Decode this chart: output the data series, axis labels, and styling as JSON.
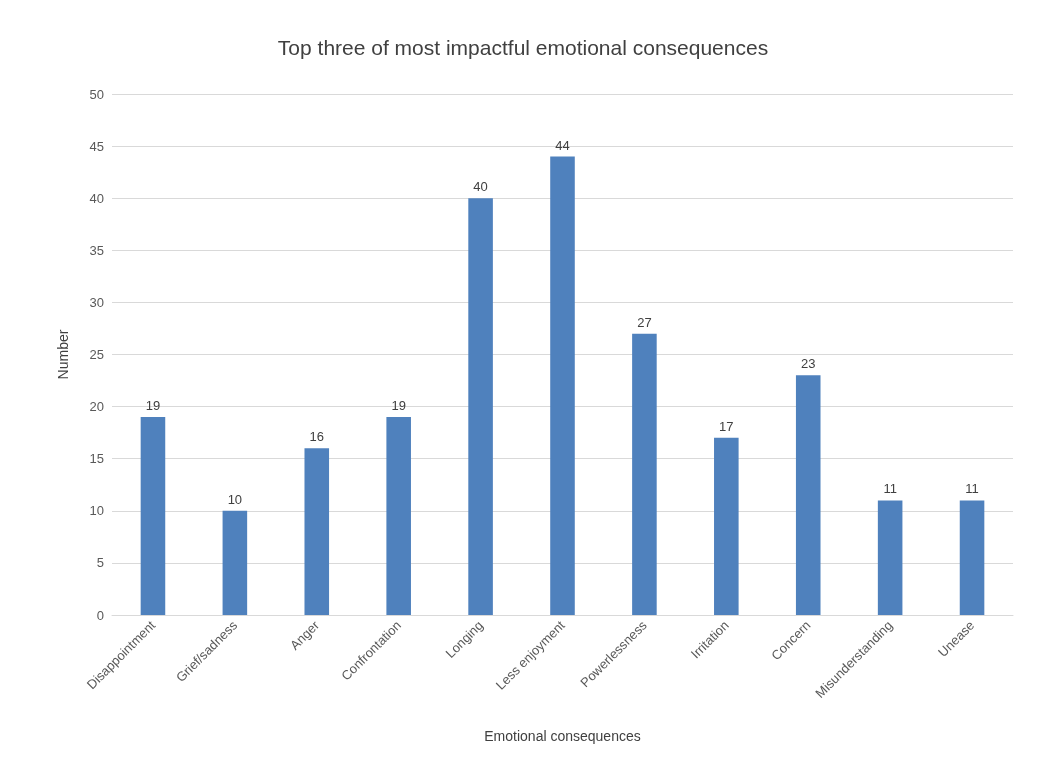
{
  "chart_data": {
    "type": "bar",
    "title": "Top three of most impactful emotional consequences",
    "xlabel": "Emotional consequences",
    "ylabel": "Number",
    "categories": [
      "Disappointment",
      "Grief/sadness",
      "Anger",
      "Confrontation",
      "Longing",
      "Less enjoyment",
      "Powerlessness",
      "Irritation",
      "Concern",
      "Misunderstanding",
      "Unease"
    ],
    "values": [
      19,
      10,
      16,
      19,
      40,
      44,
      27,
      17,
      23,
      11,
      11
    ],
    "color": "#4f81bd",
    "ylim": [
      0,
      50
    ],
    "yticks": [
      0,
      5,
      10,
      15,
      20,
      25,
      30,
      35,
      40,
      45,
      50
    ],
    "grid": "y",
    "data_labels": true
  }
}
